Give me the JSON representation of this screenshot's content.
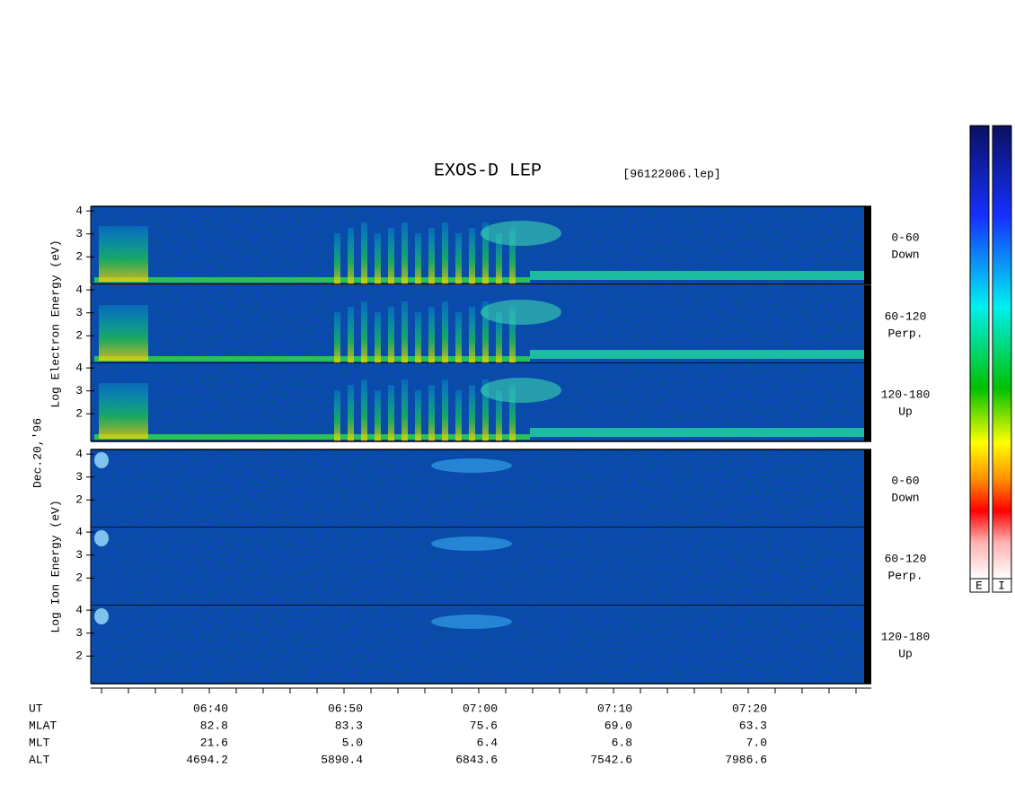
{
  "title": "EXOS-D LEP",
  "file": "[96122006.lep]",
  "date": "Dec.20,'96",
  "ylim": [
    0.8,
    4.2
  ],
  "groups": [
    {
      "axis_label": "Log Electron Energy (eV)",
      "panels": [
        {
          "label": [
            "0-60",
            "Down"
          ],
          "yticks": [
            2,
            3,
            4
          ]
        },
        {
          "label": [
            "60-120",
            "Perp."
          ],
          "yticks": [
            2,
            3,
            4
          ]
        },
        {
          "label": [
            "120-180",
            "Up"
          ],
          "yticks": [
            2,
            3,
            4
          ]
        }
      ]
    },
    {
      "axis_label": "Log Ion Energy (eV)",
      "panels": [
        {
          "label": [
            "0-60",
            "Down"
          ],
          "yticks": [
            2,
            3,
            4
          ]
        },
        {
          "label": [
            "60-120",
            "Perp."
          ],
          "yticks": [
            2,
            3,
            4
          ]
        },
        {
          "label": [
            "120-180",
            "Up"
          ],
          "yticks": [
            2,
            3,
            4
          ]
        }
      ]
    }
  ],
  "ephemeris": [
    {
      "name": "UT",
      "values": [
        "06:40",
        "06:50",
        "07:00",
        "07:10",
        "07:20"
      ]
    },
    {
      "name": "MLAT",
      "values": [
        "82.8",
        "83.3",
        "75.6",
        "69.0",
        "63.3"
      ]
    },
    {
      "name": "MLT",
      "values": [
        "21.6",
        "5.0",
        "6.4",
        "6.8",
        "7.0"
      ]
    },
    {
      "name": "ALT",
      "values": [
        "4694.2",
        "5890.4",
        "6843.6",
        "7542.6",
        "7986.6"
      ]
    }
  ],
  "colorbar_labels": [
    "E",
    "I"
  ]
}
